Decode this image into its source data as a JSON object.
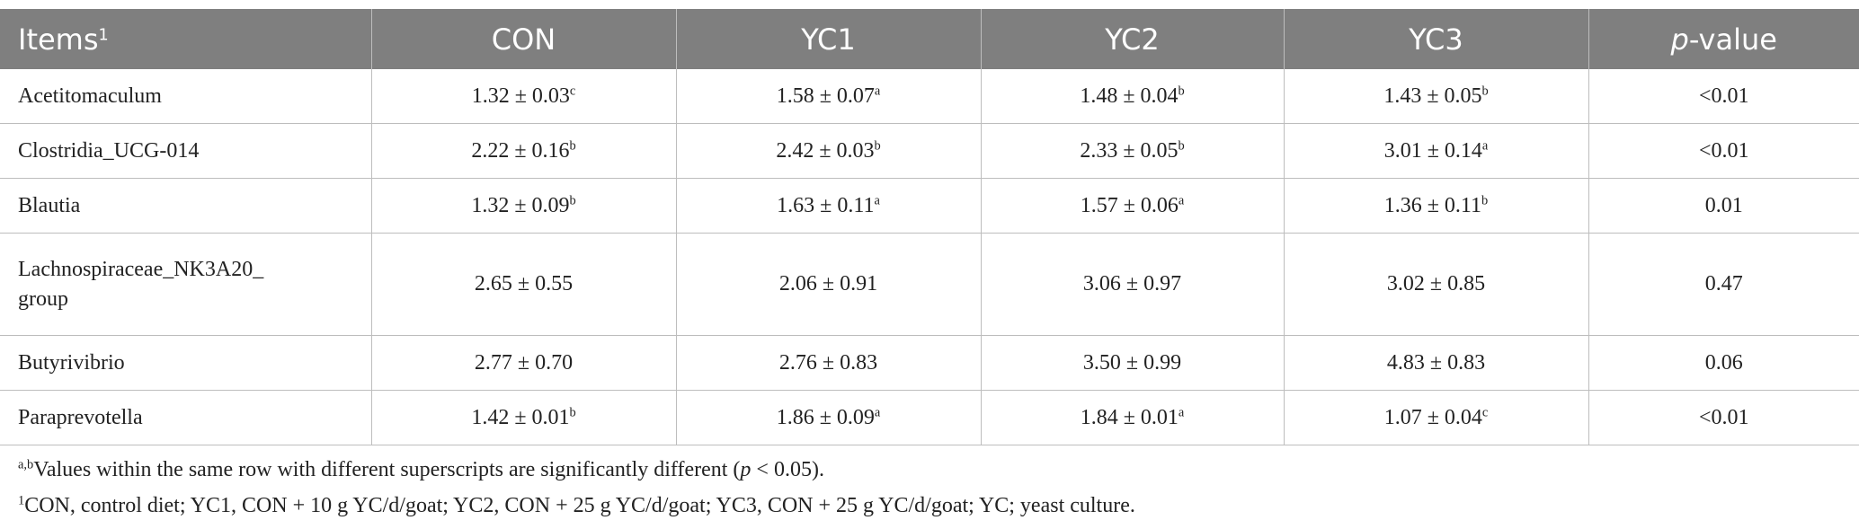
{
  "table": {
    "header": [
      {
        "text": "Items",
        "sup": "1"
      },
      {
        "text": "CON"
      },
      {
        "text": "YC1"
      },
      {
        "text": "YC2"
      },
      {
        "text": "YC3"
      },
      {
        "italic": "p",
        "text": "-value"
      }
    ],
    "rows": [
      {
        "label": [
          "Acetitomaculum"
        ],
        "cells": [
          {
            "text": "1.32 ± 0.03",
            "sup": "c"
          },
          {
            "text": "1.58 ± 0.07",
            "sup": "a"
          },
          {
            "text": "1.48 ± 0.04",
            "sup": "b"
          },
          {
            "text": "1.43 ± 0.05",
            "sup": "b"
          }
        ],
        "p": "<0.01"
      },
      {
        "label": [
          "Clostridia_UCG-014"
        ],
        "cells": [
          {
            "text": "2.22 ± 0.16",
            "sup": "b"
          },
          {
            "text": "2.42 ± 0.03",
            "sup": "b"
          },
          {
            "text": "2.33 ± 0.05",
            "sup": "b"
          },
          {
            "text": "3.01 ± 0.14",
            "sup": "a"
          }
        ],
        "p": "<0.01"
      },
      {
        "label": [
          "Blautia"
        ],
        "cells": [
          {
            "text": "1.32 ± 0.09",
            "sup": "b"
          },
          {
            "text": "1.63 ± 0.11",
            "sup": "a"
          },
          {
            "text": "1.57 ± 0.06",
            "sup": "a"
          },
          {
            "text": "1.36 ± 0.11",
            "sup": "b"
          }
        ],
        "p": "0.01"
      },
      {
        "label": [
          "Lachnospiraceae_NK3A20_",
          "group"
        ],
        "cells": [
          {
            "text": "2.65 ± 0.55"
          },
          {
            "text": "2.06 ± 0.91"
          },
          {
            "text": "3.06 ± 0.97"
          },
          {
            "text": "3.02 ± 0.85"
          }
        ],
        "p": "0.47"
      },
      {
        "label": [
          "Butyrivibrio"
        ],
        "cells": [
          {
            "text": "2.77 ± 0.70"
          },
          {
            "text": "2.76 ± 0.83"
          },
          {
            "text": "3.50 ± 0.99"
          },
          {
            "text": "4.83 ± 0.83"
          }
        ],
        "p": "0.06"
      },
      {
        "label": [
          "Paraprevotella"
        ],
        "cells": [
          {
            "text": "1.42 ± 0.01",
            "sup": "b"
          },
          {
            "text": "1.86 ± 0.09",
            "sup": "a"
          },
          {
            "text": "1.84 ± 0.01",
            "sup": "a"
          },
          {
            "text": "1.07 ± 0.04",
            "sup": "c"
          }
        ],
        "p": "<0.01"
      }
    ]
  },
  "footnotes": [
    {
      "sup": "a,b",
      "parts": [
        "Values within the same row with different superscripts are significantly different (",
        "p",
        " < 0.05)."
      ]
    },
    {
      "sup": "1",
      "parts": [
        "CON, control diet; YC1, CON + 10 g YC/d/goat; YC2, CON + 25 g YC/d/goat; YC3, CON + 25 g YC/d/goat; YC; yeast culture."
      ]
    }
  ]
}
